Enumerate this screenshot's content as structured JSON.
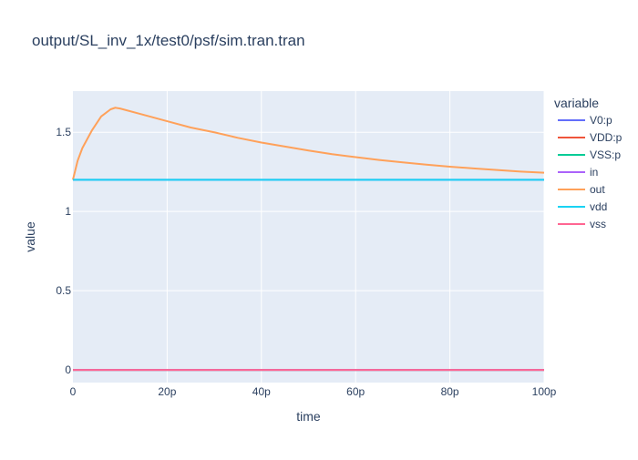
{
  "chart_data": {
    "type": "line",
    "title": "output/SL_inv_1x/test0/psf/sim.tran.tran",
    "xlabel": "time",
    "ylabel": "value",
    "xlim": [
      0,
      100
    ],
    "ylim": [
      -0.08,
      1.76
    ],
    "grid": true,
    "legend_position": "right",
    "legend_title": "variable",
    "x_ticks": [
      {
        "value": 0,
        "label": "0"
      },
      {
        "value": 20,
        "label": "20p"
      },
      {
        "value": 40,
        "label": "40p"
      },
      {
        "value": 60,
        "label": "60p"
      },
      {
        "value": 80,
        "label": "80p"
      },
      {
        "value": 100,
        "label": "100p"
      }
    ],
    "y_ticks": [
      {
        "value": 0,
        "label": "0"
      },
      {
        "value": 0.5,
        "label": "0.5"
      },
      {
        "value": 1,
        "label": "1"
      },
      {
        "value": 1.5,
        "label": "1.5"
      }
    ],
    "series": [
      {
        "name": "V0:p",
        "color": "#636efa",
        "x": [
          0,
          100
        ],
        "y": [
          1.2,
          1.2
        ]
      },
      {
        "name": "VDD:p",
        "color": "#ef553b",
        "x": [
          0,
          100
        ],
        "y": [
          0,
          0
        ]
      },
      {
        "name": "VSS:p",
        "color": "#00cc96",
        "x": [
          0,
          100
        ],
        "y": [
          0,
          0
        ]
      },
      {
        "name": "in",
        "color": "#ab63fa",
        "x": [
          0,
          100
        ],
        "y": [
          0,
          0
        ]
      },
      {
        "name": "out",
        "color": "#ffa15a",
        "x": [
          0,
          1,
          2,
          4,
          6,
          8,
          9,
          10,
          15,
          20,
          25,
          30,
          35,
          40,
          45,
          50,
          55,
          60,
          65,
          70,
          75,
          80,
          85,
          90,
          95,
          100
        ],
        "y": [
          1.2,
          1.32,
          1.4,
          1.51,
          1.6,
          1.645,
          1.655,
          1.65,
          1.61,
          1.57,
          1.53,
          1.5,
          1.465,
          1.435,
          1.41,
          1.385,
          1.362,
          1.343,
          1.325,
          1.31,
          1.296,
          1.283,
          1.272,
          1.262,
          1.252,
          1.245
        ]
      },
      {
        "name": "vdd",
        "color": "#19d3f3",
        "x": [
          0,
          100
        ],
        "y": [
          1.2,
          1.2
        ]
      },
      {
        "name": "vss",
        "color": "#ff6692",
        "x": [
          0,
          100
        ],
        "y": [
          0,
          0
        ]
      }
    ]
  }
}
